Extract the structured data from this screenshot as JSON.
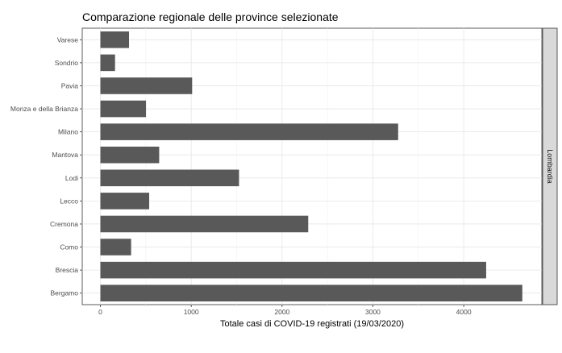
{
  "chart_data": {
    "type": "bar",
    "orientation": "horizontal",
    "title": "Comparazione regionale delle province selezionate",
    "xlabel": "Totale casi di COVID-19 registrati (19/03/2020)",
    "ylabel": "",
    "facet_label": "Lombardia",
    "categories": [
      "Bergamo",
      "Brescia",
      "Como",
      "Cremona",
      "Lecco",
      "Lodi",
      "Mantova",
      "Milano",
      "Monza e della Brianza",
      "Pavia",
      "Sondrio",
      "Varese"
    ],
    "values": [
      4645,
      4247,
      338,
      2288,
      537,
      1526,
      647,
      3278,
      502,
      1010,
      161,
      315
    ],
    "xlim": [
      -200,
      4860
    ],
    "xticks": [
      0,
      1000,
      2000,
      3000,
      4000
    ],
    "bar_color": "#595959",
    "grid": true,
    "legend": "none"
  }
}
